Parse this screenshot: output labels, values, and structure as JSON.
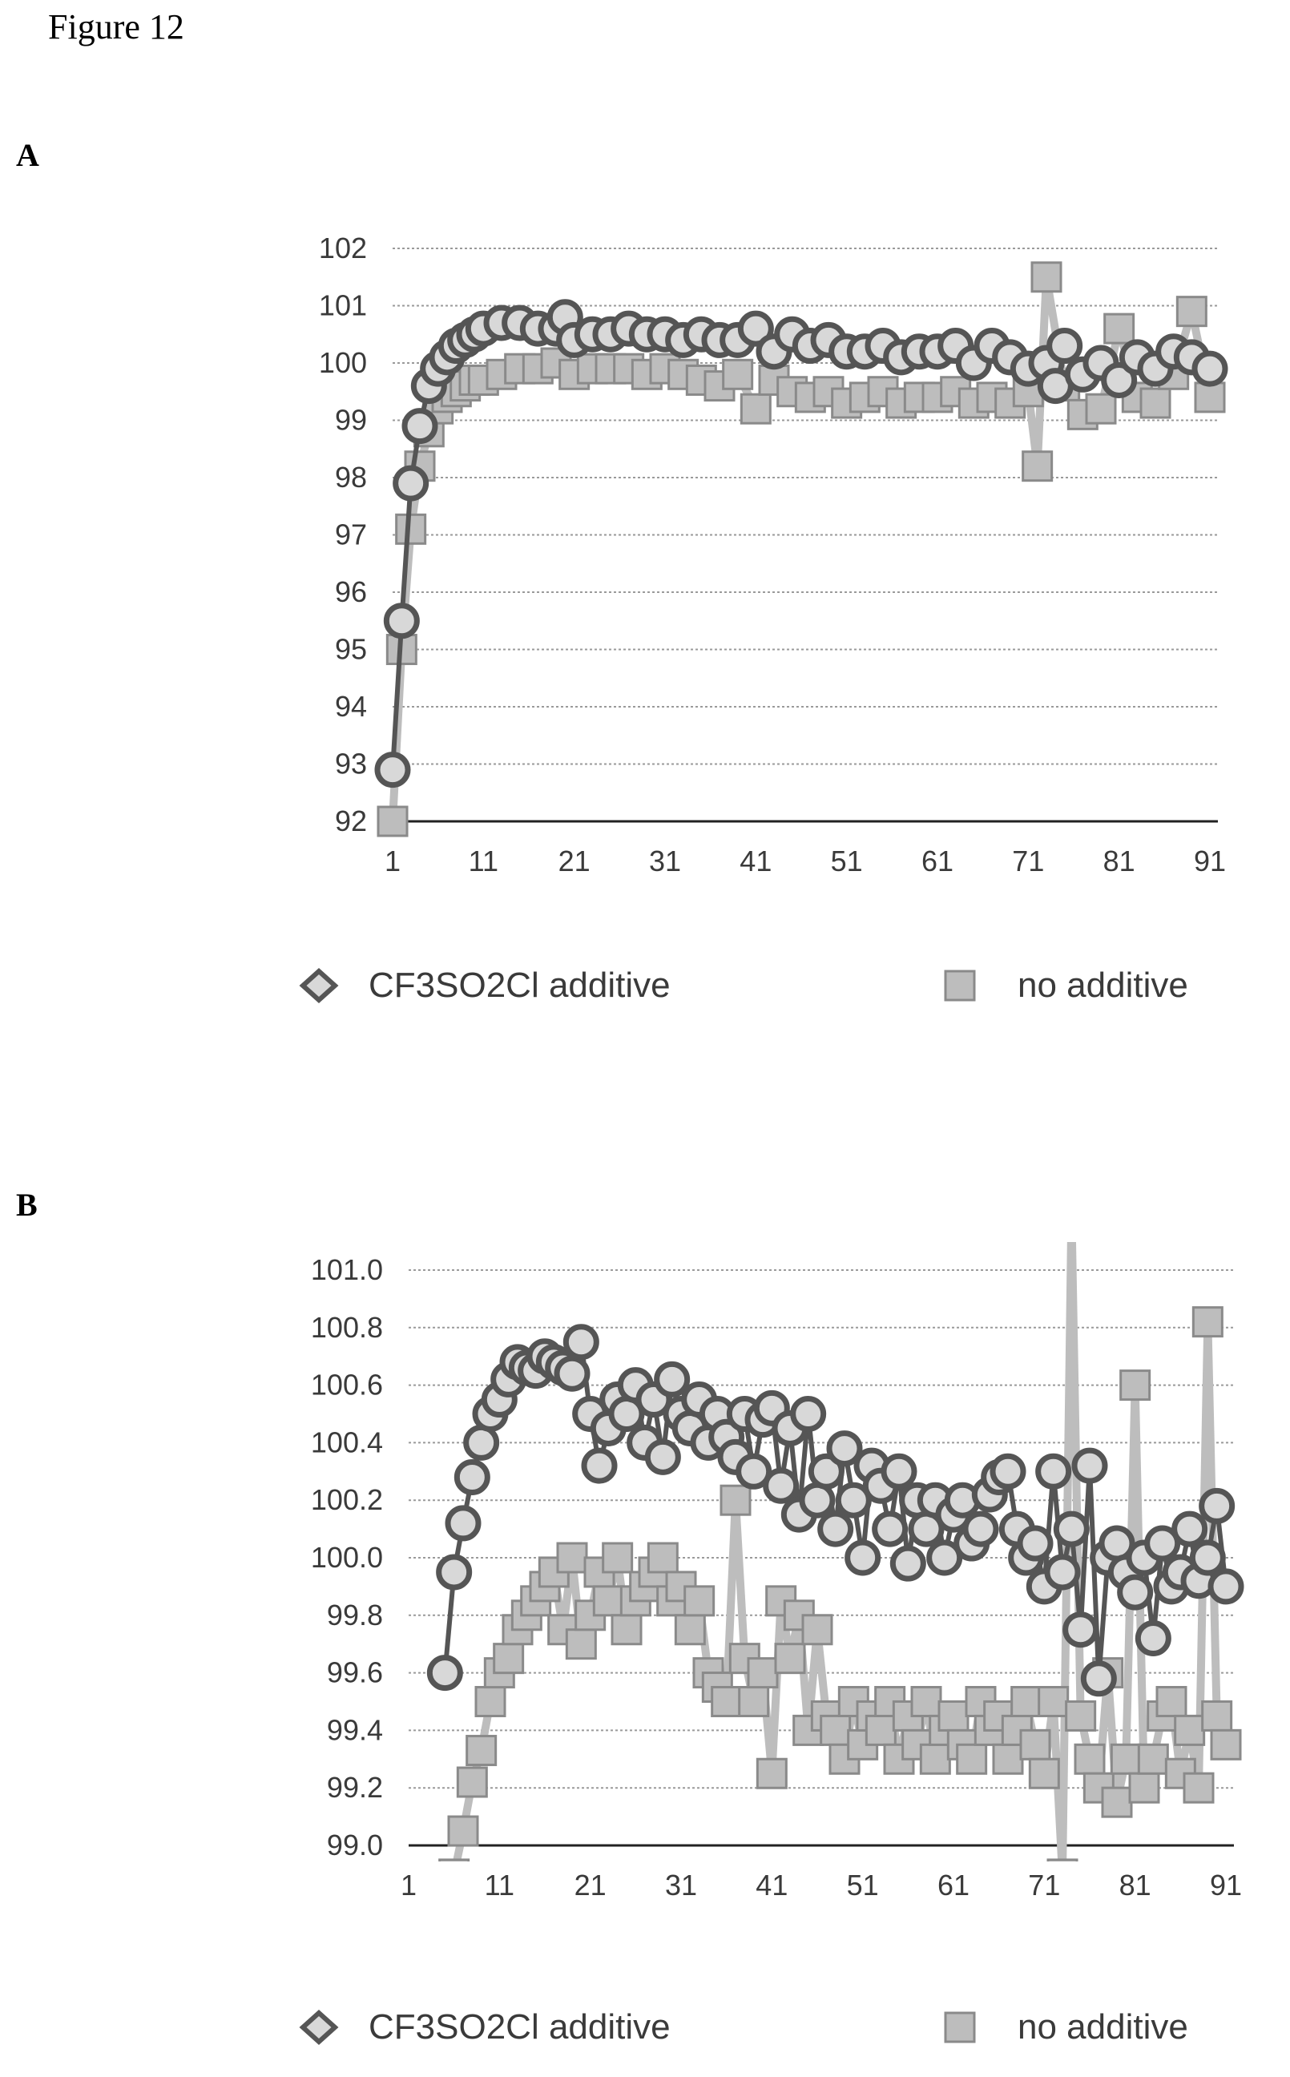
{
  "figure_title": "Figure 12",
  "colors": {
    "grid": "#9a9a9a",
    "axis": "#222222",
    "additive_stroke": "#555555",
    "additive_fill": "#d8d8d8",
    "no_additive_fill": "#bdbdbd",
    "no_additive_stroke": "#8a8a8a"
  },
  "chart_data": [
    {
      "panel_label": "A",
      "type": "line",
      "title": "",
      "xlabel": "",
      "ylabel": "",
      "xlim": [
        1,
        91
      ],
      "ylim": [
        92,
        102
      ],
      "x_ticks": [
        "1",
        "11",
        "21",
        "31",
        "41",
        "51",
        "61",
        "71",
        "81",
        "91"
      ],
      "y_ticks": [
        "92",
        "93",
        "94",
        "95",
        "96",
        "97",
        "98",
        "99",
        "100",
        "101",
        "102"
      ],
      "grid": true,
      "legend_position": "bottom",
      "series": [
        {
          "name": "CF3SO2Cl additive",
          "marker": "diamond",
          "x": [
            1,
            2,
            3,
            4,
            5,
            6,
            7,
            8,
            9,
            10,
            11,
            13,
            15,
            17,
            19,
            20,
            21,
            23,
            25,
            27,
            29,
            31,
            33,
            35,
            37,
            39,
            41,
            43,
            45,
            47,
            49,
            51,
            53,
            55,
            57,
            59,
            61,
            63,
            65,
            67,
            69,
            71,
            73,
            74,
            75,
            77,
            79,
            81,
            83,
            85,
            87,
            89,
            91
          ],
          "y": [
            92.9,
            95.5,
            97.9,
            98.9,
            99.6,
            99.9,
            100.1,
            100.3,
            100.4,
            100.5,
            100.6,
            100.7,
            100.7,
            100.6,
            100.6,
            100.8,
            100.4,
            100.5,
            100.5,
            100.6,
            100.5,
            100.5,
            100.4,
            100.5,
            100.4,
            100.4,
            100.6,
            100.2,
            100.5,
            100.3,
            100.4,
            100.2,
            100.2,
            100.3,
            100.1,
            100.2,
            100.2,
            100.3,
            100.0,
            100.3,
            100.1,
            99.9,
            100.0,
            99.6,
            100.3,
            99.8,
            100.0,
            99.7,
            100.1,
            99.9,
            100.2,
            100.1,
            99.9
          ]
        },
        {
          "name": "no additive",
          "marker": "square",
          "x": [
            1,
            2,
            3,
            4,
            5,
            6,
            7,
            8,
            9,
            10,
            11,
            13,
            15,
            17,
            19,
            21,
            23,
            25,
            27,
            29,
            31,
            33,
            35,
            37,
            39,
            41,
            43,
            45,
            47,
            49,
            51,
            53,
            55,
            57,
            59,
            61,
            63,
            65,
            67,
            69,
            71,
            72,
            73,
            75,
            77,
            79,
            81,
            83,
            85,
            87,
            89,
            91
          ],
          "y": [
            92.0,
            95.0,
            97.1,
            98.2,
            98.8,
            99.2,
            99.4,
            99.5,
            99.6,
            99.7,
            99.7,
            99.8,
            99.9,
            99.9,
            100.0,
            99.8,
            99.9,
            99.9,
            99.9,
            99.8,
            99.9,
            99.8,
            99.7,
            99.6,
            99.8,
            99.2,
            99.7,
            99.5,
            99.4,
            99.5,
            99.3,
            99.4,
            99.5,
            99.3,
            99.4,
            99.4,
            99.5,
            99.3,
            99.4,
            99.3,
            99.5,
            98.2,
            101.5,
            99.6,
            99.1,
            99.2,
            100.6,
            99.4,
            99.3,
            99.8,
            100.9,
            99.4
          ]
        }
      ]
    },
    {
      "panel_label": "B",
      "type": "line",
      "title": "",
      "xlabel": "",
      "ylabel": "",
      "xlim": [
        1,
        91
      ],
      "ylim": [
        99.0,
        101.0
      ],
      "x_ticks": [
        "1",
        "11",
        "21",
        "31",
        "41",
        "51",
        "61",
        "71",
        "81",
        "91"
      ],
      "y_ticks": [
        "99.0",
        "99.2",
        "99.4",
        "99.6",
        "99.8",
        "100.0",
        "100.2",
        "100.4",
        "100.6",
        "100.8",
        "101.0"
      ],
      "grid": true,
      "legend_position": "bottom",
      "series": [
        {
          "name": "CF3SO2Cl additive",
          "marker": "diamond",
          "x": [
            5,
            6,
            7,
            8,
            9,
            10,
            11,
            12,
            13,
            14,
            15,
            16,
            17,
            18,
            19,
            20,
            21,
            22,
            23,
            24,
            25,
            26,
            27,
            28,
            29,
            30,
            31,
            32,
            33,
            34,
            35,
            36,
            37,
            38,
            39,
            40,
            41,
            42,
            43,
            44,
            45,
            46,
            47,
            48,
            49,
            50,
            51,
            52,
            53,
            54,
            55,
            56,
            57,
            58,
            59,
            60,
            61,
            62,
            63,
            64,
            65,
            66,
            67,
            68,
            69,
            70,
            71,
            72,
            73,
            74,
            75,
            76,
            77,
            78,
            79,
            80,
            81,
            82,
            83,
            84,
            85,
            86,
            87,
            88,
            89,
            90,
            91
          ],
          "y": [
            99.6,
            99.95,
            100.12,
            100.28,
            100.4,
            100.5,
            100.55,
            100.62,
            100.68,
            100.66,
            100.65,
            100.7,
            100.68,
            100.66,
            100.64,
            100.75,
            100.5,
            100.32,
            100.45,
            100.55,
            100.5,
            100.6,
            100.4,
            100.55,
            100.35,
            100.62,
            100.5,
            100.45,
            100.55,
            100.4,
            100.5,
            100.42,
            100.35,
            100.5,
            100.3,
            100.48,
            100.52,
            100.25,
            100.45,
            100.15,
            100.5,
            100.2,
            100.3,
            100.1,
            100.38,
            100.2,
            100.0,
            100.32,
            100.25,
            100.1,
            100.3,
            99.98,
            100.2,
            100.1,
            100.2,
            100.0,
            100.15,
            100.2,
            100.05,
            100.1,
            100.22,
            100.28,
            100.3,
            100.1,
            100.0,
            100.05,
            99.9,
            100.3,
            99.95,
            100.1,
            99.75,
            100.32,
            99.58,
            100.0,
            100.05,
            99.95,
            99.88,
            100.0,
            99.72,
            100.05,
            99.9,
            99.95,
            100.1,
            99.92,
            100.0,
            100.18,
            99.9
          ]
        },
        {
          "name": "no additive",
          "marker": "square",
          "x": [
            5,
            6,
            7,
            8,
            9,
            10,
            11,
            12,
            13,
            14,
            15,
            16,
            17,
            18,
            19,
            20,
            21,
            22,
            23,
            24,
            25,
            26,
            27,
            28,
            29,
            30,
            31,
            32,
            33,
            34,
            35,
            36,
            37,
            38,
            39,
            40,
            41,
            42,
            43,
            44,
            45,
            46,
            47,
            48,
            49,
            50,
            51,
            52,
            53,
            54,
            55,
            56,
            57,
            58,
            59,
            60,
            61,
            62,
            63,
            64,
            65,
            66,
            67,
            68,
            69,
            70,
            71,
            72,
            73,
            74,
            75,
            76,
            77,
            78,
            79,
            80,
            81,
            82,
            83,
            84,
            85,
            86,
            87,
            88,
            89,
            90,
            91
          ],
          "y": [
            98.5,
            98.9,
            99.05,
            99.22,
            99.33,
            99.5,
            99.6,
            99.65,
            99.75,
            99.8,
            99.85,
            99.9,
            99.95,
            99.75,
            100.0,
            99.7,
            99.8,
            99.95,
            99.85,
            100.0,
            99.75,
            99.85,
            99.9,
            99.95,
            100.0,
            99.85,
            99.9,
            99.75,
            99.85,
            99.6,
            99.55,
            99.5,
            100.2,
            99.65,
            99.5,
            99.6,
            99.25,
            99.85,
            99.65,
            99.8,
            99.4,
            99.75,
            99.45,
            99.4,
            99.3,
            99.5,
            99.35,
            99.45,
            99.4,
            99.5,
            99.3,
            99.45,
            99.35,
            99.5,
            99.3,
            99.4,
            99.45,
            99.35,
            99.3,
            99.5,
            99.4,
            99.45,
            99.3,
            99.4,
            99.5,
            99.35,
            99.25,
            99.5,
            98.9,
            101.2,
            99.45,
            99.3,
            99.2,
            99.6,
            99.15,
            99.3,
            100.6,
            99.2,
            99.3,
            99.45,
            99.5,
            99.25,
            99.4,
            99.2,
            100.82,
            99.45,
            99.35
          ]
        }
      ]
    }
  ]
}
